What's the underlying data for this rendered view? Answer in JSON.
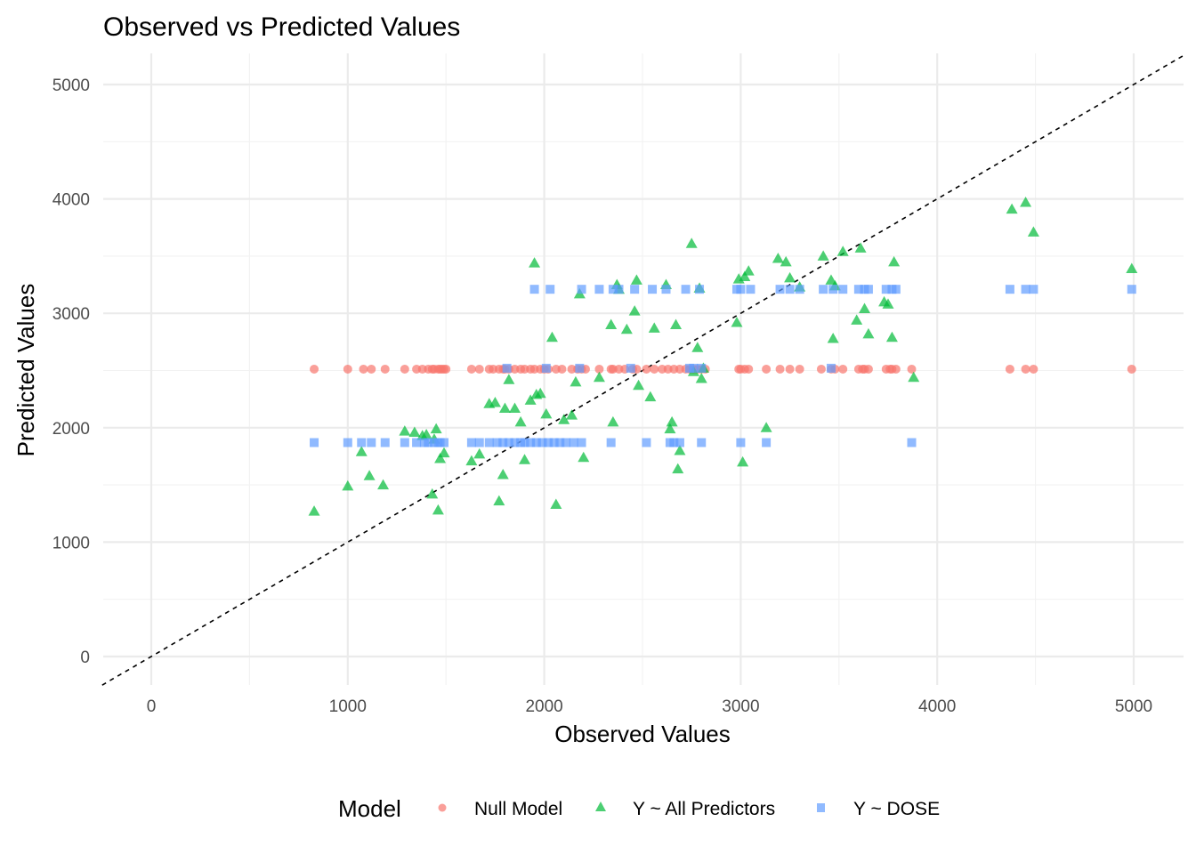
{
  "chart_data": {
    "type": "scatter",
    "title": "Observed vs Predicted Values",
    "xlabel": "Observed Values",
    "ylabel": "Predicted Values",
    "xlim": [
      -250,
      5250
    ],
    "ylim": [
      -250,
      5250
    ],
    "x_ticks": [
      0,
      1000,
      2000,
      3000,
      4000,
      5000
    ],
    "y_ticks": [
      0,
      1000,
      2000,
      3000,
      4000,
      5000
    ],
    "x_tick_labels": [
      "0",
      "1000",
      "2000",
      "3000",
      "4000",
      "5000"
    ],
    "y_tick_labels": [
      "0",
      "1000",
      "2000",
      "3000",
      "4000",
      "5000"
    ],
    "grid": true,
    "reference_line": {
      "type": "identity",
      "slope": 1,
      "intercept": 0,
      "style": "dashed",
      "color": "#000000"
    },
    "legend": {
      "title": "Model",
      "placement": "bottom",
      "entries": [
        {
          "label": "Null Model",
          "shape": "circle",
          "color": "#F8766D"
        },
        {
          "label": "Y ~ All Predictors",
          "shape": "triangle",
          "color": "#00BA38"
        },
        {
          "label": "Y ~ DOSE",
          "shape": "square",
          "color": "#619CFF"
        }
      ]
    },
    "series": [
      {
        "name": "Null Model",
        "shape": "circle",
        "color": "#F8766D",
        "x": [
          829,
          1000,
          1080,
          1120,
          1190,
          1290,
          1350,
          1380,
          1410,
          1430,
          1440,
          1460,
          1470,
          1480,
          1490,
          1500,
          1630,
          1670,
          1720,
          1740,
          1770,
          1790,
          1800,
          1820,
          1850,
          1880,
          1900,
          1930,
          1950,
          1980,
          2000,
          2020,
          2060,
          2090,
          2140,
          2170,
          2190,
          2210,
          2280,
          2340,
          2350,
          2380,
          2410,
          2450,
          2470,
          2520,
          2560,
          2600,
          2630,
          2660,
          2690,
          2720,
          2740,
          2760,
          2780,
          2800,
          2820,
          2990,
          3000,
          3020,
          3040,
          3130,
          3200,
          3250,
          3300,
          3410,
          3460,
          3480,
          3520,
          3600,
          3620,
          3630,
          3650,
          3740,
          3760,
          3770,
          3790,
          3870,
          4370,
          4450,
          4490,
          4990
        ],
        "y": [
          2512,
          2512,
          2512,
          2512,
          2512,
          2512,
          2512,
          2512,
          2512,
          2512,
          2512,
          2512,
          2512,
          2512,
          2512,
          2512,
          2512,
          2512,
          2512,
          2512,
          2512,
          2512,
          2512,
          2512,
          2512,
          2512,
          2512,
          2512,
          2512,
          2512,
          2512,
          2512,
          2512,
          2512,
          2512,
          2512,
          2512,
          2512,
          2512,
          2512,
          2512,
          2512,
          2512,
          2512,
          2512,
          2512,
          2512,
          2512,
          2512,
          2512,
          2512,
          2512,
          2512,
          2512,
          2512,
          2512,
          2512,
          2512,
          2512,
          2512,
          2512,
          2512,
          2512,
          2512,
          2512,
          2512,
          2512,
          2512,
          2512,
          2512,
          2512,
          2512,
          2512,
          2512,
          2512,
          2512,
          2512,
          2512,
          2512,
          2512,
          2512,
          2512
        ]
      },
      {
        "name": "Y ~ All Predictors",
        "shape": "triangle",
        "color": "#00BA38",
        "x": [
          829,
          1000,
          1070,
          1110,
          1180,
          1290,
          1340,
          1380,
          1400,
          1430,
          1440,
          1450,
          1460,
          1470,
          1490,
          1630,
          1670,
          1720,
          1750,
          1770,
          1790,
          1800,
          1820,
          1850,
          1880,
          1900,
          1930,
          1950,
          1960,
          1980,
          2010,
          2040,
          2060,
          2100,
          2140,
          2160,
          2180,
          2200,
          2280,
          2340,
          2350,
          2370,
          2380,
          2420,
          2460,
          2470,
          2480,
          2540,
          2560,
          2620,
          2640,
          2650,
          2670,
          2680,
          2690,
          2750,
          2760,
          2780,
          2790,
          2800,
          2810,
          2980,
          2990,
          3010,
          3020,
          3040,
          3130,
          3190,
          3230,
          3250,
          3300,
          3420,
          3460,
          3470,
          3480,
          3520,
          3590,
          3610,
          3630,
          3650,
          3730,
          3750,
          3770,
          3780,
          3880,
          4380,
          4450,
          4490,
          4990
        ],
        "y": [
          1270,
          1490,
          1790,
          1580,
          1500,
          1970,
          1960,
          1930,
          1940,
          1420,
          1900,
          1990,
          1280,
          1730,
          1780,
          1710,
          1770,
          2210,
          2220,
          1360,
          1590,
          2170,
          2420,
          2170,
          2050,
          1720,
          2240,
          3440,
          2290,
          2300,
          2120,
          2790,
          1330,
          2070,
          2110,
          2400,
          3170,
          1740,
          2440,
          2900,
          2050,
          3250,
          3210,
          2860,
          3020,
          3290,
          2370,
          2270,
          2870,
          3250,
          1990,
          2050,
          2900,
          1640,
          1800,
          3610,
          2490,
          2700,
          3220,
          2430,
          2520,
          2920,
          3300,
          1700,
          3320,
          3370,
          2000,
          3480,
          3450,
          3310,
          3230,
          3500,
          3290,
          2780,
          3240,
          3540,
          2940,
          3570,
          3040,
          2820,
          3100,
          3080,
          2790,
          3450,
          2440,
          3910,
          3970,
          3710,
          3390
        ]
      },
      {
        "name": "Y ~ DOSE",
        "shape": "square",
        "color": "#619CFF",
        "x": [
          829,
          1000,
          1070,
          1120,
          1190,
          1290,
          1350,
          1390,
          1410,
          1440,
          1460,
          1470,
          1490,
          1630,
          1670,
          1720,
          1760,
          1790,
          1820,
          1850,
          1880,
          1900,
          1930,
          1960,
          1990,
          2020,
          2050,
          2080,
          2110,
          2150,
          2190,
          2340,
          2520,
          2640,
          2660,
          2690,
          2800,
          3000,
          3130,
          3870,
          1950,
          2030,
          2190,
          2280,
          2350,
          2380,
          2460,
          2550,
          2620,
          2720,
          2790,
          2980,
          3000,
          3050,
          3200,
          3250,
          3300,
          3420,
          3470,
          3520,
          3600,
          3630,
          3650,
          3740,
          3770,
          3790,
          4370,
          4450,
          4490,
          4990,
          1810,
          2010,
          2180,
          2440,
          2740,
          2760,
          2800,
          3460
        ],
        "y": [
          1870,
          1870,
          1870,
          1870,
          1870,
          1870,
          1870,
          1870,
          1870,
          1870,
          1870,
          1870,
          1870,
          1870,
          1870,
          1870,
          1870,
          1870,
          1870,
          1870,
          1870,
          1870,
          1870,
          1870,
          1870,
          1870,
          1870,
          1870,
          1870,
          1870,
          1870,
          1870,
          1870,
          1870,
          1870,
          1870,
          1870,
          1870,
          1870,
          1870,
          3210,
          3210,
          3210,
          3210,
          3210,
          3210,
          3210,
          3210,
          3210,
          3210,
          3210,
          3210,
          3210,
          3210,
          3210,
          3210,
          3210,
          3210,
          3210,
          3210,
          3210,
          3210,
          3210,
          3210,
          3210,
          3210,
          3210,
          3210,
          3210,
          3210,
          2520,
          2520,
          2520,
          2520,
          2520,
          2520,
          2520,
          2520
        ]
      }
    ]
  }
}
